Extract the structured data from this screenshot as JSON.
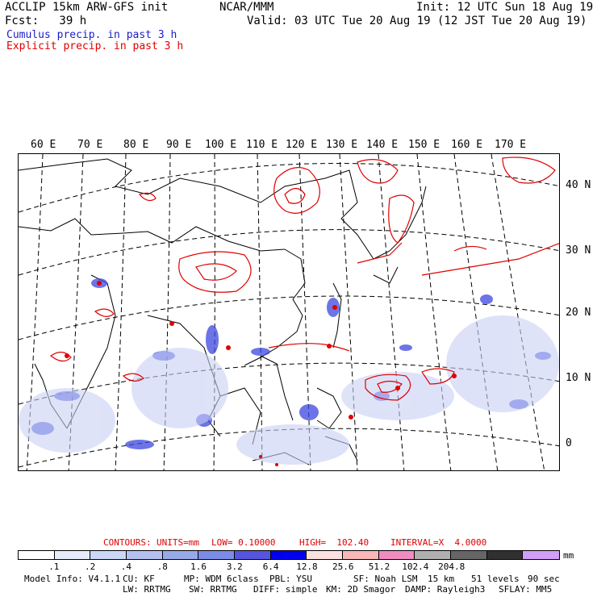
{
  "header": {
    "line1_left": "ACCLIP 15km ARW-GFS init",
    "line1_center": "NCAR/MMM",
    "line1_right": "Init: 12 UTC Sun 18 Aug 19",
    "line2_left": "Fcst:   39 h",
    "line2_right": "Valid: 03 UTC Tue 20 Aug 19 (12 JST Tue 20 Aug 19)",
    "legend_cumulus": "Cumulus precip. in past 3 h",
    "legend_explicit": "Explicit precip. in past 3 h",
    "colors": {
      "cumulus": "#1c1ccc",
      "explicit": "#e00000"
    }
  },
  "map": {
    "lon_labels": [
      "60 E",
      "70 E",
      "80 E",
      "90 E",
      "100 E",
      "110 E",
      "120 E",
      "130 E",
      "140 E",
      "150 E",
      "160 E",
      "170 E"
    ],
    "lat_labels": [
      "40 N",
      "30 N",
      "20 N",
      "10 N",
      "0"
    ]
  },
  "contour_info": {
    "contours": "CONTOURS:",
    "units": "UNITS=mm",
    "low": "LOW= 0.10000",
    "high": "HIGH=  102.40",
    "interval": "INTERVAL=X  4.0000",
    "color": "#e00000"
  },
  "colorbar": {
    "colors": [
      "#ffffff",
      "#e6ecfa",
      "#ccd6f5",
      "#b3c0f0",
      "#99aaeb",
      "#7c8ce6",
      "#5555e0",
      "#0000ee",
      "#fde0e0",
      "#f9b8b8",
      "#f08cc0",
      "#b0b0b0",
      "#666666",
      "#303030",
      "#d0a0f8"
    ],
    "ticks": [
      ".1",
      ".2",
      ".4",
      ".8",
      "1.6",
      "3.2",
      "6.4",
      "12.8",
      "25.6",
      "51.2",
      "102.4",
      "204.8"
    ],
    "unit": "mm"
  },
  "footer": {
    "line1": [
      "Model Info: V4.1.1",
      "CU: KF",
      "MP: WDM 6class",
      "PBL: YSU",
      "SF: Noah LSM",
      "15 km",
      "51 levels",
      "90 sec"
    ],
    "line2": [
      "LW: RRTMG",
      "SW: RRTMG",
      "DIFF: simple",
      "KM: 2D Smagor",
      "DAMP: Rayleigh3",
      "SFLAY: MM5"
    ]
  }
}
